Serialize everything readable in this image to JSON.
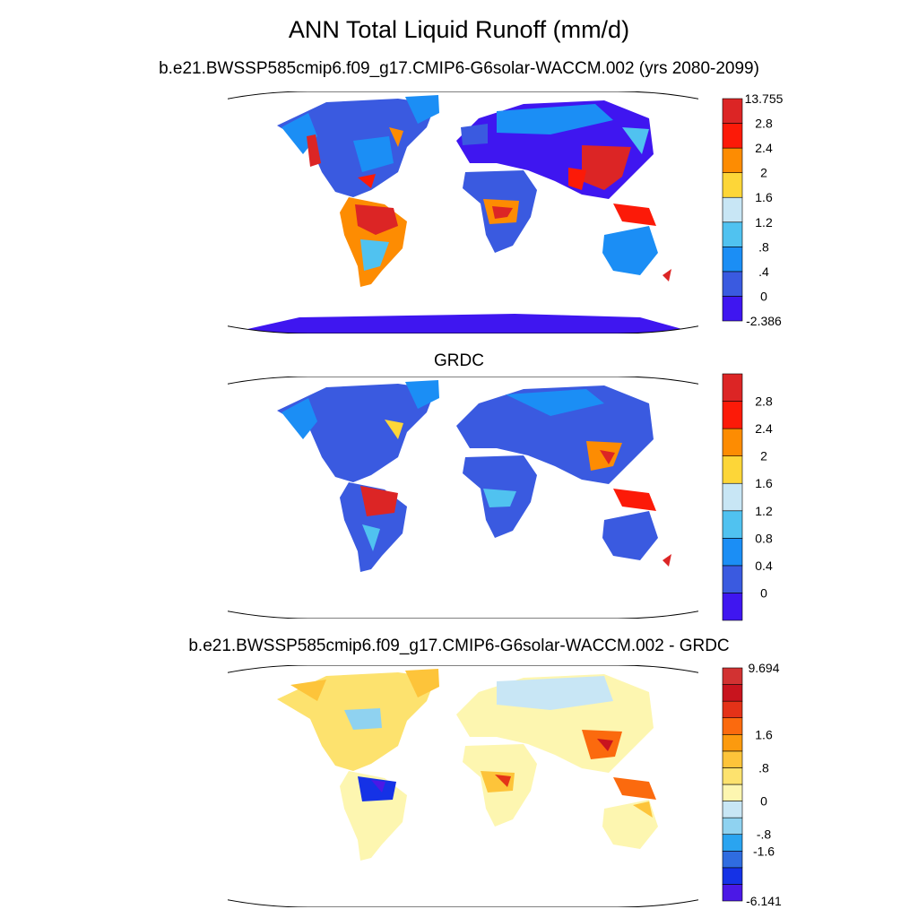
{
  "title": "ANN Total Liquid Runoff (mm/d)",
  "panels": [
    {
      "id": "model",
      "subtitle": "b.e21.BWSSP585cmip6.f09_g17.CMIP6-G6solar-WACCM.002 (yrs 2080-2099)",
      "colorbar": {
        "colors": [
          "#3f16f0",
          "#3a5ae0",
          "#1b8ef5",
          "#50c2f0",
          "#c8e6f5",
          "#fdd638",
          "#fd8c02",
          "#fc1a08",
          "#dc2525"
        ],
        "labels": [
          "-2.386",
          "0",
          ".4",
          ".8",
          "1.2",
          "1.6",
          "2",
          "2.4",
          "2.8",
          "13.755"
        ]
      }
    },
    {
      "id": "obs",
      "subtitle": "GRDC",
      "colorbar": {
        "colors": [
          "#3f16f0",
          "#3a5ae0",
          "#1b8ef5",
          "#50c2f0",
          "#c8e6f5",
          "#fdd638",
          "#fd8c02",
          "#fc1a08",
          "#dc2525"
        ],
        "labels": [
          "0",
          "0.4",
          "0.8",
          "1.2",
          "1.6",
          "2",
          "2.4",
          "2.8"
        ]
      }
    },
    {
      "id": "diff",
      "subtitle": "b.e21.BWSSP585cmip6.f09_g17.CMIP6-G6solar-WACCM.002 - GRDC",
      "colorbar": {
        "colors": [
          "#4b18e6",
          "#1532e6",
          "#2f6ce0",
          "#2aa4f0",
          "#8fd2f0",
          "#c8e6f5",
          "#fdf6b0",
          "#fde26e",
          "#fdc43a",
          "#fc9a0e",
          "#fb6a0e",
          "#e43218",
          "#c8141e",
          "#d23232"
        ],
        "labels": [
          "-6.141",
          "-1.6",
          "-.8",
          "0",
          ".8",
          "1.6",
          "9.694"
        ]
      }
    }
  ]
}
